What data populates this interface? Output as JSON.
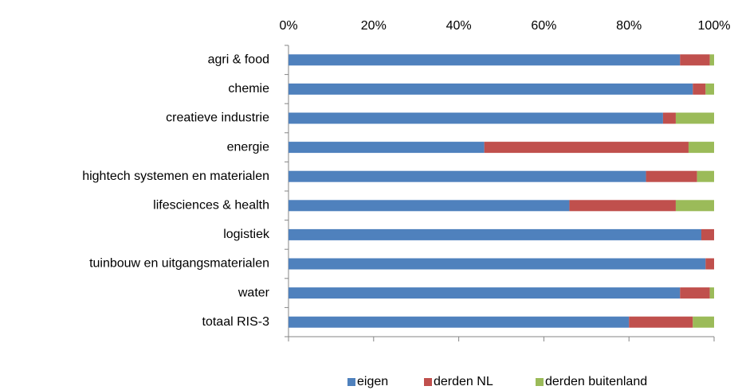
{
  "chart_data": {
    "type": "stacked_bar_horizontal",
    "categories": [
      "agri & food",
      "chemie",
      "creatieve industrie",
      "energie",
      "hightech systemen en materialen",
      "lifesciences & health",
      "logistiek",
      "tuinbouw en uitgangsmaterialen",
      "water",
      "totaal RIS-3"
    ],
    "series": [
      {
        "name": "eigen",
        "color": "#4f81bd",
        "values": [
          92,
          95,
          88,
          46,
          84,
          66,
          97,
          98,
          92,
          80
        ]
      },
      {
        "name": "derden NL",
        "color": "#c0504d",
        "values": [
          7,
          3,
          3,
          48,
          12,
          25,
          3,
          2,
          7,
          15
        ]
      },
      {
        "name": "derden buitenland",
        "color": "#9bbb59",
        "values": [
          1,
          2,
          9,
          6,
          4,
          9,
          0,
          0,
          1,
          5
        ]
      }
    ],
    "xlim": [
      0,
      100
    ],
    "xticks": [
      {
        "value": 0,
        "label": "0%"
      },
      {
        "value": 20,
        "label": "20%"
      },
      {
        "value": 40,
        "label": "40%"
      },
      {
        "value": 60,
        "label": "60%"
      },
      {
        "value": 80,
        "label": "80%"
      },
      {
        "value": 100,
        "label": "100%"
      }
    ],
    "legend": "bottom"
  }
}
